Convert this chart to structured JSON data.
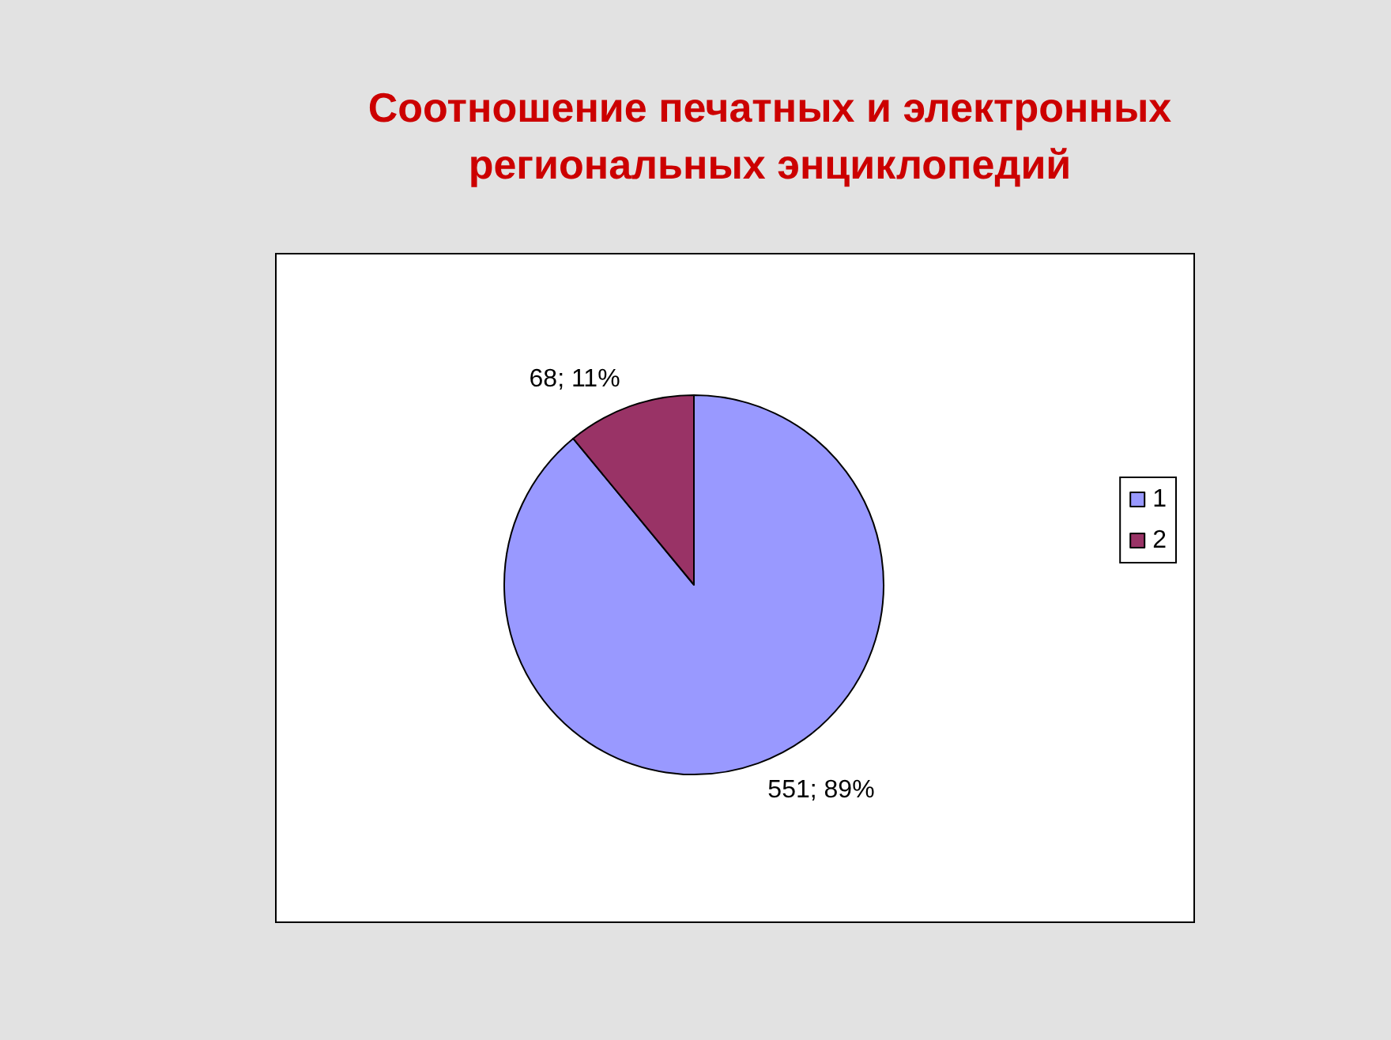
{
  "chart_data": {
    "type": "pie",
    "title": "Соотношение печатных и электронных\nрегиональных энциклопедий",
    "categories": [
      "1",
      "2"
    ],
    "values": [
      551,
      68
    ],
    "colors": [
      "#9999ff",
      "#993366"
    ],
    "value_labels": [
      "551; 89%",
      "68; 11%"
    ],
    "legend": "right"
  }
}
